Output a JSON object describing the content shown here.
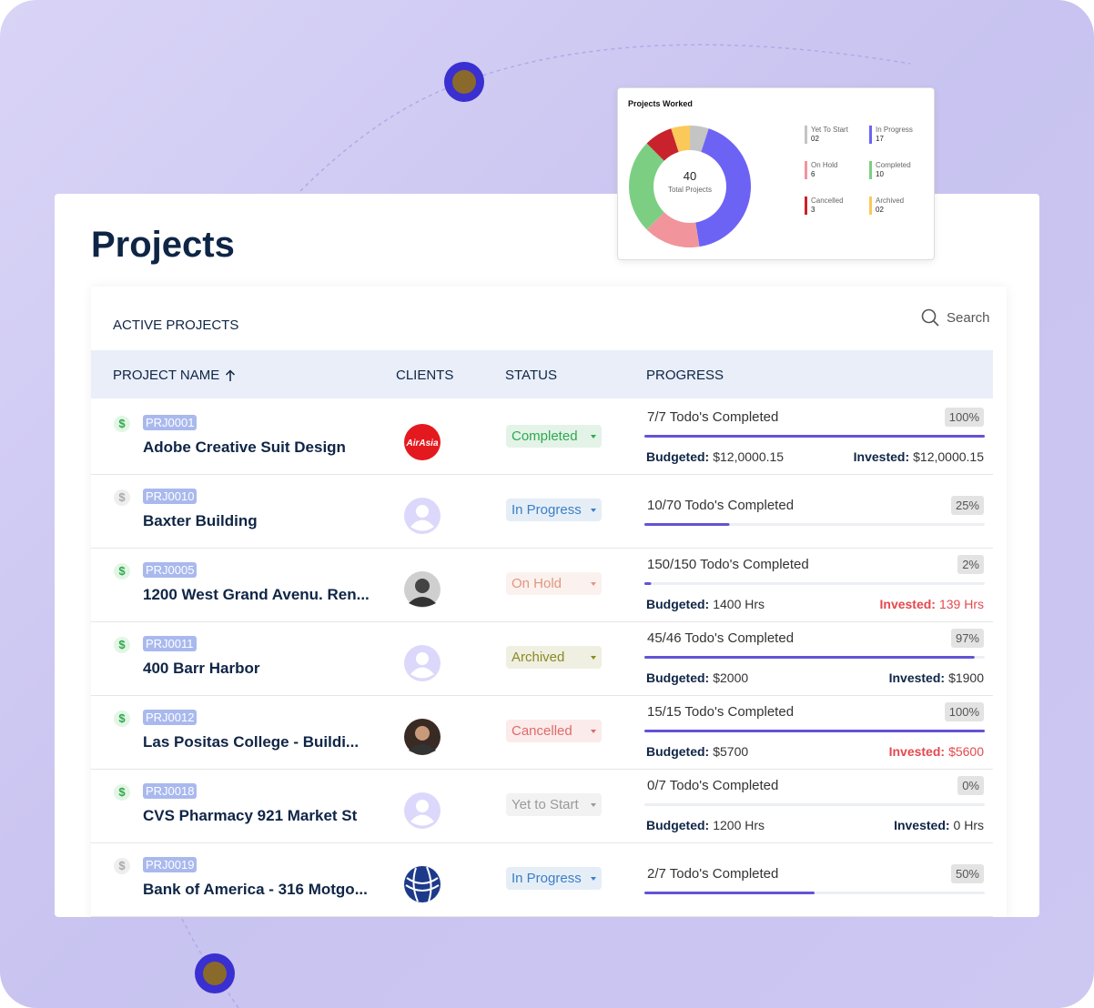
{
  "header": {
    "title": "Projects"
  },
  "chart_data": {
    "type": "pie",
    "title": "Projects Worked",
    "center_value": 40,
    "center_label": "Total Projects",
    "categories": [
      "Yet To Start",
      "In Progress",
      "On Hold",
      "Completed",
      "Cancelled",
      "Archived"
    ],
    "values": [
      2,
      17,
      6,
      10,
      3,
      2
    ],
    "value_labels": [
      "02",
      "17",
      "6",
      "10",
      "3",
      "02"
    ],
    "colors": [
      "#c4c4c4",
      "#6c63f5",
      "#f2949c",
      "#7ccf82",
      "#c8232c",
      "#fbc95a"
    ]
  },
  "table": {
    "title": "ACTIVE PROJECTS",
    "search": "Search",
    "currency": "$",
    "columns": [
      "PROJECT NAME",
      "CLIENTS",
      "STATUS",
      "PROGRESS"
    ],
    "labels": {
      "budgeted": "Budgeted:",
      "invested": "Invested:"
    },
    "rows": [
      {
        "id": "PRJ0001",
        "name": "Adobe Creative Suit Design",
        "billable": true,
        "client_logo_text": "AirAsia",
        "status": "Completed",
        "status_color": "#2fa84f",
        "todos": "7/7 Todo's Completed",
        "progress": {
          "value": 100,
          "label": "100%"
        },
        "budgeted": "$12,0000.15",
        "invested": "$12,0000.15"
      },
      {
        "id": "PRJ0010",
        "name": "Baxter Building",
        "billable": false,
        "status": "In Progress",
        "status_color": "#3b7fc4",
        "todos": "10/70 Todo's Completed",
        "progress": {
          "value": 25,
          "label": "25%"
        }
      },
      {
        "id": "PRJ0005",
        "name": "1200 West Grand Avenu. Ren...",
        "billable": true,
        "status": "On Hold",
        "status_color": "#e0987f",
        "todos": "150/150 Todo's Completed",
        "progress": {
          "value": 2,
          "label": "2%"
        },
        "budgeted": "1400 Hrs",
        "invested": "139 Hrs",
        "invested_color": "#e5484d"
      },
      {
        "id": "PRJ0011",
        "name": "400 Barr Harbor",
        "billable": true,
        "status": "Archived",
        "status_color": "#8a8a24",
        "todos": "45/46 Todo's Completed",
        "progress": {
          "value": 97,
          "label": "97%"
        },
        "budgeted": "$2000",
        "invested": "$1900"
      },
      {
        "id": "PRJ0012",
        "name": "Las Positas College - Buildi...",
        "billable": true,
        "status": "Cancelled",
        "status_color": "#e06a6a",
        "todos": "15/15 Todo's Completed",
        "progress": {
          "value": 100,
          "label": "100%"
        },
        "budgeted": "$5700",
        "invested": "$5600",
        "invested_color": "#e5484d"
      },
      {
        "id": "PRJ0018",
        "name": "CVS Pharmacy 921 Market St",
        "billable": true,
        "status": "Yet to Start",
        "status_color": "#9a9a9a",
        "todos": "0/7 Todo's Completed",
        "progress": {
          "value": 0,
          "label": "0%"
        },
        "budgeted": "1200 Hrs",
        "invested": "0 Hrs"
      },
      {
        "id": "PRJ0019",
        "name": "Bank of America - 316 Motgo...",
        "billable": false,
        "status": "In Progress",
        "status_color": "#3b7fc4",
        "todos": "2/7 Todo's Completed",
        "progress": {
          "value": 50,
          "label": "50%"
        }
      }
    ]
  }
}
